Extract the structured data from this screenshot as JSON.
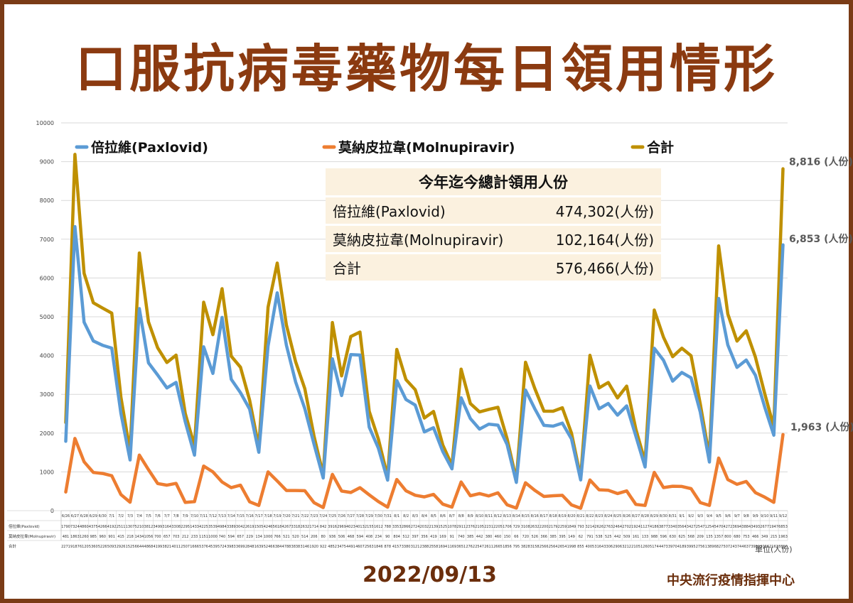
{
  "page": {
    "title": "口服抗病毒藥物每日領用情形",
    "date": "2022/09/13",
    "organization": "中央流行疫情指揮中心",
    "unit": "單位(人份)"
  },
  "summary": {
    "title": "今年迄今總計領用人份",
    "rows": [
      {
        "label": "倍拉維(Paxlovid)",
        "value": "474,302(人份)"
      },
      {
        "label": "莫納皮拉韋(Molnupiravir)",
        "value": "102,164(人份)"
      },
      {
        "label": "合計",
        "value": "576,466(人份)"
      }
    ]
  },
  "chart_data": {
    "type": "line",
    "title": "",
    "xlabel": "",
    "ylabel": "",
    "ylim": [
      0,
      10000
    ],
    "yticks": [
      0,
      1000,
      2000,
      3000,
      4000,
      5000,
      6000,
      7000,
      8000,
      9000,
      10000
    ],
    "grid": true,
    "legend": "top",
    "table_row_labels": [
      "倍拉維(Paxlovid)",
      "莫納皮拉韋(Molnupiravir)",
      "合計"
    ],
    "end_labels": [
      "6,853 (人份)",
      "1,963 (人份)",
      "8,816 (人份)"
    ],
    "categories": [
      "6/26",
      "6/27",
      "6/28",
      "6/29",
      "6/30",
      "7/1",
      "7/2",
      "7/3",
      "7/4",
      "7/5",
      "7/6",
      "7/7",
      "7/8",
      "7/9",
      "7/10",
      "7/11",
      "7/12",
      "7/13",
      "7/14",
      "7/15",
      "7/16",
      "7/17",
      "7/18",
      "7/19",
      "7/20",
      "7/21",
      "7/22",
      "7/23",
      "7/24",
      "7/25",
      "7/26",
      "7/27",
      "7/28",
      "7/29",
      "7/30",
      "7/31",
      "8/1",
      "8/2",
      "8/3",
      "8/4",
      "8/5",
      "8/6",
      "8/7",
      "8/8",
      "8/9",
      "8/10",
      "8/11",
      "8/12",
      "8/13",
      "8/14",
      "8/15",
      "8/16",
      "8/17",
      "8/18",
      "8/19",
      "8/20",
      "8/21",
      "8/22",
      "8/23",
      "8/24",
      "8/25",
      "8/26",
      "8/27",
      "8/28",
      "8/29",
      "8/30",
      "8/31",
      "9/1",
      "9/2",
      "9/3",
      "9/4",
      "9/5",
      "9/6",
      "9/7",
      "9/8",
      "9/9",
      "9/10",
      "9/11",
      "9/12"
    ],
    "series": [
      {
        "name": "倍拉維(Paxlovid)",
        "color": "#5b9bd5",
        "values": [
          1790,
          7324,
          4860,
          4375,
          4266,
          4192,
          2511,
          1307,
          5210,
          3812,
          3499,
          3164,
          3308,
          2295,
          1433,
          4225,
          3539,
          4984,
          3389,
          3042,
          2619,
          1505,
          4246,
          5618,
          4267,
          3318,
          2632,
          1714,
          842,
          3916,
          2969,
          4023,
          4013,
          2155,
          1612,
          788,
          3353,
          2866,
          2724,
          2032,
          2139,
          1525,
          1078,
          2911,
          2376,
          2105,
          2231,
          2205,
          1706,
          729,
          3108,
          2632,
          2200,
          2179,
          2259,
          1849,
          793,
          3214,
          2626,
          2763,
          2464,
          2702,
          1924,
          1127,
          4186,
          3877,
          3340,
          3564,
          3427,
          2547,
          1254,
          5470,
          4272,
          3694,
          3884,
          3493,
          2677,
          1947,
          6853
        ]
      },
      {
        "name": "莫納皮拉韋(Molnupiravir)",
        "color": "#ed7d31",
        "values": [
          481,
          1863,
          1260,
          985,
          960,
          901,
          415,
          218,
          1434,
          1056,
          700,
          657,
          703,
          212,
          233,
          1151,
          1000,
          740,
          594,
          657,
          229,
          134,
          1000,
          766,
          521,
          520,
          514,
          206,
          80,
          936,
          506,
          468,
          594,
          408,
          234,
          90,
          804,
          512,
          397,
          356,
          419,
          169,
          91,
          740,
          385,
          442,
          380,
          460,
          150,
          66,
          720,
          526,
          366,
          385,
          395,
          149,
          62,
          791,
          538,
          525,
          442,
          509,
          161,
          133,
          988,
          596,
          630,
          625,
          568,
          209,
          135,
          1357,
          800,
          680,
          753,
          466,
          349,
          215,
          1963
        ]
      },
      {
        "name": "合計",
        "color": "#bf9000",
        "values": [
          2271,
          9187,
          6120,
          5360,
          5226,
          5093,
          2926,
          1525,
          6644,
          4868,
          4199,
          3821,
          4011,
          2507,
          1666,
          5376,
          4539,
          5724,
          3983,
          3699,
          2848,
          1639,
          5246,
          6384,
          4788,
          3838,
          3146,
          1920,
          922,
          4852,
          3475,
          4491,
          4607,
          2563,
          1846,
          878,
          4157,
          3380,
          3121,
          2388,
          2558,
          1694,
          1169,
          3651,
          2762,
          2547,
          2611,
          2665,
          1856,
          795,
          3828,
          3158,
          2566,
          2564,
          2654,
          1998,
          855,
          4005,
          3164,
          3306,
          2906,
          3212,
          2105,
          1260,
          5174,
          4473,
          3970,
          4189,
          3995,
          2756,
          1389,
          6827,
          5072,
          4374,
          4637,
          3959,
          3026,
          2162,
          8816
        ]
      }
    ]
  }
}
